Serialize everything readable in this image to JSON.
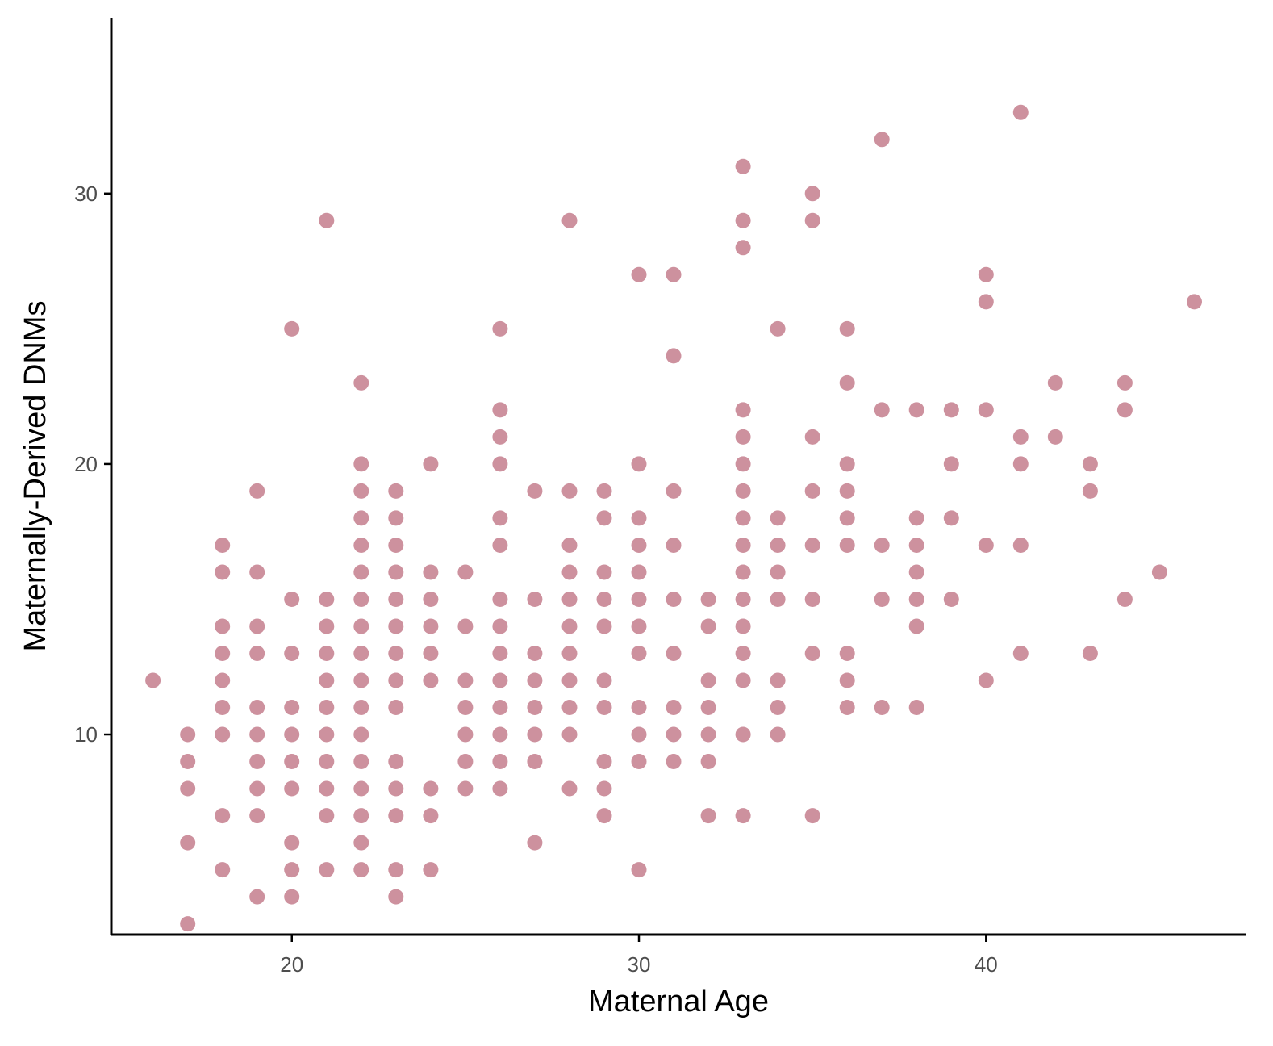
{
  "chart_data": {
    "type": "scatter",
    "title": "",
    "xlabel": "Maternal Age",
    "ylabel": "Maternally-Derived DNMs",
    "xlim": [
      14.8,
      47.5
    ],
    "ylim": [
      2.6,
      36.5
    ],
    "x_ticks": [
      20,
      30,
      40
    ],
    "y_ticks": [
      10,
      20,
      30
    ],
    "grid": false,
    "legend": "none",
    "point_color": "#cd919e",
    "axis_color": "#000000",
    "tick_label_color": "#4d4d4d",
    "points": [
      [
        16,
        12
      ],
      [
        17,
        10
      ],
      [
        17,
        9
      ],
      [
        17,
        8
      ],
      [
        17,
        6
      ],
      [
        17,
        3
      ],
      [
        18,
        17
      ],
      [
        18,
        16
      ],
      [
        18,
        14
      ],
      [
        18,
        13
      ],
      [
        18,
        12
      ],
      [
        18,
        11
      ],
      [
        18,
        10
      ],
      [
        18,
        7
      ],
      [
        18,
        5
      ],
      [
        19,
        19
      ],
      [
        19,
        16
      ],
      [
        19,
        14
      ],
      [
        19,
        13
      ],
      [
        19,
        11
      ],
      [
        19,
        10
      ],
      [
        19,
        9
      ],
      [
        19,
        8
      ],
      [
        19,
        7
      ],
      [
        19,
        4
      ],
      [
        20,
        25
      ],
      [
        20,
        15
      ],
      [
        20,
        13
      ],
      [
        20,
        11
      ],
      [
        20,
        10
      ],
      [
        20,
        9
      ],
      [
        20,
        8
      ],
      [
        20,
        6
      ],
      [
        20,
        5
      ],
      [
        20,
        4
      ],
      [
        21,
        29
      ],
      [
        21,
        15
      ],
      [
        21,
        14
      ],
      [
        21,
        13
      ],
      [
        21,
        12
      ],
      [
        21,
        11
      ],
      [
        21,
        10
      ],
      [
        21,
        9
      ],
      [
        21,
        8
      ],
      [
        21,
        7
      ],
      [
        21,
        5
      ],
      [
        22,
        23
      ],
      [
        22,
        20
      ],
      [
        22,
        19
      ],
      [
        22,
        18
      ],
      [
        22,
        17
      ],
      [
        22,
        16
      ],
      [
        22,
        15
      ],
      [
        22,
        14
      ],
      [
        22,
        13
      ],
      [
        22,
        12
      ],
      [
        22,
        11
      ],
      [
        22,
        10
      ],
      [
        22,
        9
      ],
      [
        22,
        8
      ],
      [
        22,
        7
      ],
      [
        22,
        6
      ],
      [
        22,
        5
      ],
      [
        23,
        19
      ],
      [
        23,
        18
      ],
      [
        23,
        17
      ],
      [
        23,
        16
      ],
      [
        23,
        15
      ],
      [
        23,
        14
      ],
      [
        23,
        13
      ],
      [
        23,
        12
      ],
      [
        23,
        11
      ],
      [
        23,
        9
      ],
      [
        23,
        8
      ],
      [
        23,
        7
      ],
      [
        23,
        5
      ],
      [
        23,
        4
      ],
      [
        24,
        20
      ],
      [
        24,
        16
      ],
      [
        24,
        15
      ],
      [
        24,
        14
      ],
      [
        24,
        13
      ],
      [
        24,
        12
      ],
      [
        24,
        8
      ],
      [
        24,
        7
      ],
      [
        24,
        5
      ],
      [
        25,
        16
      ],
      [
        25,
        14
      ],
      [
        25,
        12
      ],
      [
        25,
        11
      ],
      [
        25,
        10
      ],
      [
        25,
        9
      ],
      [
        25,
        8
      ],
      [
        26,
        25
      ],
      [
        26,
        22
      ],
      [
        26,
        21
      ],
      [
        26,
        20
      ],
      [
        26,
        18
      ],
      [
        26,
        17
      ],
      [
        26,
        15
      ],
      [
        26,
        14
      ],
      [
        26,
        13
      ],
      [
        26,
        12
      ],
      [
        26,
        11
      ],
      [
        26,
        10
      ],
      [
        26,
        9
      ],
      [
        26,
        8
      ],
      [
        27,
        19
      ],
      [
        27,
        15
      ],
      [
        27,
        13
      ],
      [
        27,
        12
      ],
      [
        27,
        11
      ],
      [
        27,
        10
      ],
      [
        27,
        9
      ],
      [
        27,
        6
      ],
      [
        28,
        29
      ],
      [
        28,
        19
      ],
      [
        28,
        17
      ],
      [
        28,
        16
      ],
      [
        28,
        15
      ],
      [
        28,
        14
      ],
      [
        28,
        13
      ],
      [
        28,
        12
      ],
      [
        28,
        11
      ],
      [
        28,
        10
      ],
      [
        28,
        8
      ],
      [
        29,
        19
      ],
      [
        29,
        18
      ],
      [
        29,
        16
      ],
      [
        29,
        15
      ],
      [
        29,
        14
      ],
      [
        29,
        12
      ],
      [
        29,
        11
      ],
      [
        29,
        9
      ],
      [
        29,
        8
      ],
      [
        29,
        7
      ],
      [
        30,
        27
      ],
      [
        30,
        20
      ],
      [
        30,
        18
      ],
      [
        30,
        17
      ],
      [
        30,
        16
      ],
      [
        30,
        15
      ],
      [
        30,
        14
      ],
      [
        30,
        13
      ],
      [
        30,
        11
      ],
      [
        30,
        10
      ],
      [
        30,
        9
      ],
      [
        30,
        5
      ],
      [
        31,
        27
      ],
      [
        31,
        24
      ],
      [
        31,
        19
      ],
      [
        31,
        17
      ],
      [
        31,
        15
      ],
      [
        31,
        13
      ],
      [
        31,
        11
      ],
      [
        31,
        10
      ],
      [
        31,
        9
      ],
      [
        32,
        15
      ],
      [
        32,
        14
      ],
      [
        32,
        12
      ],
      [
        32,
        11
      ],
      [
        32,
        10
      ],
      [
        32,
        9
      ],
      [
        32,
        7
      ],
      [
        33,
        31
      ],
      [
        33,
        29
      ],
      [
        33,
        28
      ],
      [
        33,
        22
      ],
      [
        33,
        21
      ],
      [
        33,
        20
      ],
      [
        33,
        19
      ],
      [
        33,
        18
      ],
      [
        33,
        17
      ],
      [
        33,
        16
      ],
      [
        33,
        15
      ],
      [
        33,
        14
      ],
      [
        33,
        13
      ],
      [
        33,
        12
      ],
      [
        33,
        10
      ],
      [
        33,
        7
      ],
      [
        34,
        25
      ],
      [
        34,
        18
      ],
      [
        34,
        17
      ],
      [
        34,
        16
      ],
      [
        34,
        15
      ],
      [
        34,
        12
      ],
      [
        34,
        11
      ],
      [
        34,
        10
      ],
      [
        35,
        30
      ],
      [
        35,
        29
      ],
      [
        35,
        21
      ],
      [
        35,
        19
      ],
      [
        35,
        17
      ],
      [
        35,
        15
      ],
      [
        35,
        13
      ],
      [
        35,
        7
      ],
      [
        36,
        25
      ],
      [
        36,
        23
      ],
      [
        36,
        20
      ],
      [
        36,
        19
      ],
      [
        36,
        18
      ],
      [
        36,
        17
      ],
      [
        36,
        13
      ],
      [
        36,
        12
      ],
      [
        36,
        11
      ],
      [
        37,
        32
      ],
      [
        37,
        22
      ],
      [
        37,
        17
      ],
      [
        37,
        15
      ],
      [
        37,
        11
      ],
      [
        38,
        22
      ],
      [
        38,
        18
      ],
      [
        38,
        17
      ],
      [
        38,
        16
      ],
      [
        38,
        15
      ],
      [
        38,
        14
      ],
      [
        38,
        11
      ],
      [
        39,
        22
      ],
      [
        39,
        20
      ],
      [
        39,
        18
      ],
      [
        39,
        15
      ],
      [
        40,
        27
      ],
      [
        40,
        26
      ],
      [
        40,
        22
      ],
      [
        40,
        17
      ],
      [
        40,
        12
      ],
      [
        41,
        33
      ],
      [
        41,
        21
      ],
      [
        41,
        20
      ],
      [
        41,
        17
      ],
      [
        41,
        13
      ],
      [
        42,
        23
      ],
      [
        42,
        21
      ],
      [
        43,
        20
      ],
      [
        43,
        19
      ],
      [
        43,
        13
      ],
      [
        44,
        23
      ],
      [
        44,
        22
      ],
      [
        44,
        15
      ],
      [
        45,
        16
      ],
      [
        46,
        26
      ]
    ]
  }
}
